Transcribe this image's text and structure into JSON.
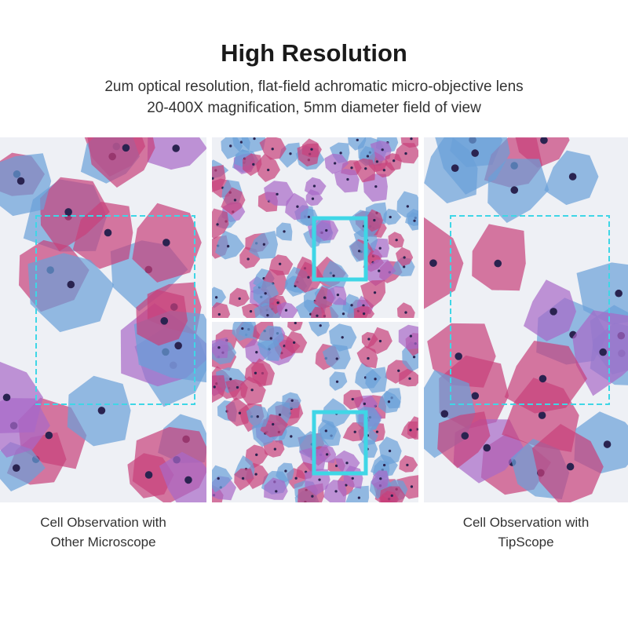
{
  "header": {
    "title": "High Resolution",
    "subtitle_line1": "2um optical resolution, flat-field achromatic micro-objective lens",
    "subtitle_line2": "20-400X magnification, 5mm diameter field of view"
  },
  "captions": {
    "left_line1": "Cell Observation with",
    "left_line2": "Other Microscope",
    "right_line1": "Cell Observation with",
    "right_line2": "TipScope"
  },
  "colors": {
    "pink_cell": "#c8407a",
    "blue_cell": "#6aa0d8",
    "purple_cell": "#a868c8",
    "highlight_box": "#3fd6e6",
    "background": "#eef0f5"
  }
}
